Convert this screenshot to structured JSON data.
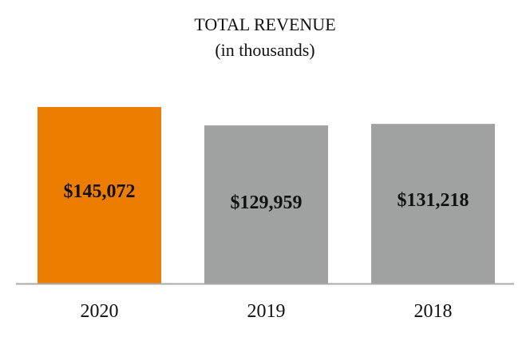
{
  "chart_data": {
    "type": "bar",
    "title": "TOTAL REVENUE",
    "subtitle": "(in thousands)",
    "categories": [
      "2020",
      "2019",
      "2018"
    ],
    "values": [
      145072,
      129959,
      131218
    ],
    "value_labels": [
      "$145,072",
      "$129,959",
      "$131,218"
    ],
    "colors": [
      "#ED7D01",
      "#A0A2A1",
      "#A0A2A1"
    ],
    "axis_color": "#A9A9A9",
    "xlabel": "",
    "ylabel": "",
    "ylim": [
      0,
      145072
    ],
    "grid": false,
    "legend": "none"
  }
}
